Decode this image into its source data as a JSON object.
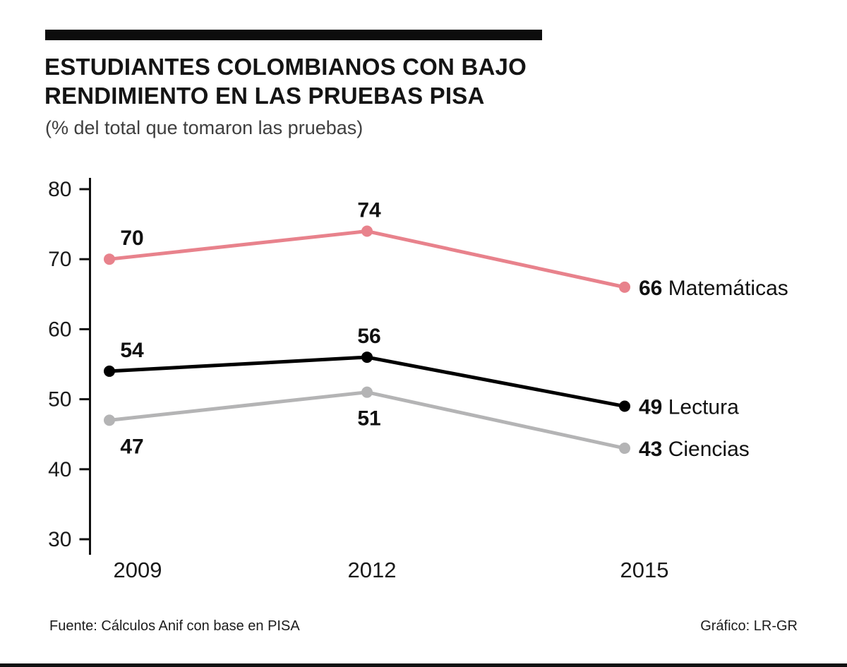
{
  "header": {
    "title_line1": "ESTUDIANTES COLOMBIANOS CON BAJO",
    "title_line2": "RENDIMIENTO EN LAS PRUEBAS PISA",
    "subtitle": "(% del total que tomaron las pruebas)"
  },
  "footer": {
    "source": "Fuente: Cálculos Anif con base en PISA",
    "credit": "Gráfico: LR-GR"
  },
  "chart_data": {
    "type": "line",
    "title": "Estudiantes colombianos con bajo rendimiento en las pruebas PISA",
    "subtitle": "(% del total que tomaron las pruebas)",
    "categories": [
      "2009",
      "2012",
      "2015"
    ],
    "series": [
      {
        "name": "Matemáticas",
        "values": [
          70,
          74,
          66
        ],
        "color": "#e8828c",
        "label_position": "above"
      },
      {
        "name": "Lectura",
        "values": [
          54,
          56,
          49
        ],
        "color": "#000000",
        "label_position": "above"
      },
      {
        "name": "Ciencias",
        "values": [
          47,
          51,
          43
        ],
        "color": "#b4b4b5",
        "label_position": "below"
      }
    ],
    "ylim": [
      30,
      80
    ],
    "yticks": [
      30,
      40,
      50,
      60,
      70,
      80
    ],
    "grid": false,
    "legend_position": "end-of-line",
    "axis_color": "#111111",
    "label_color": "#111111"
  }
}
